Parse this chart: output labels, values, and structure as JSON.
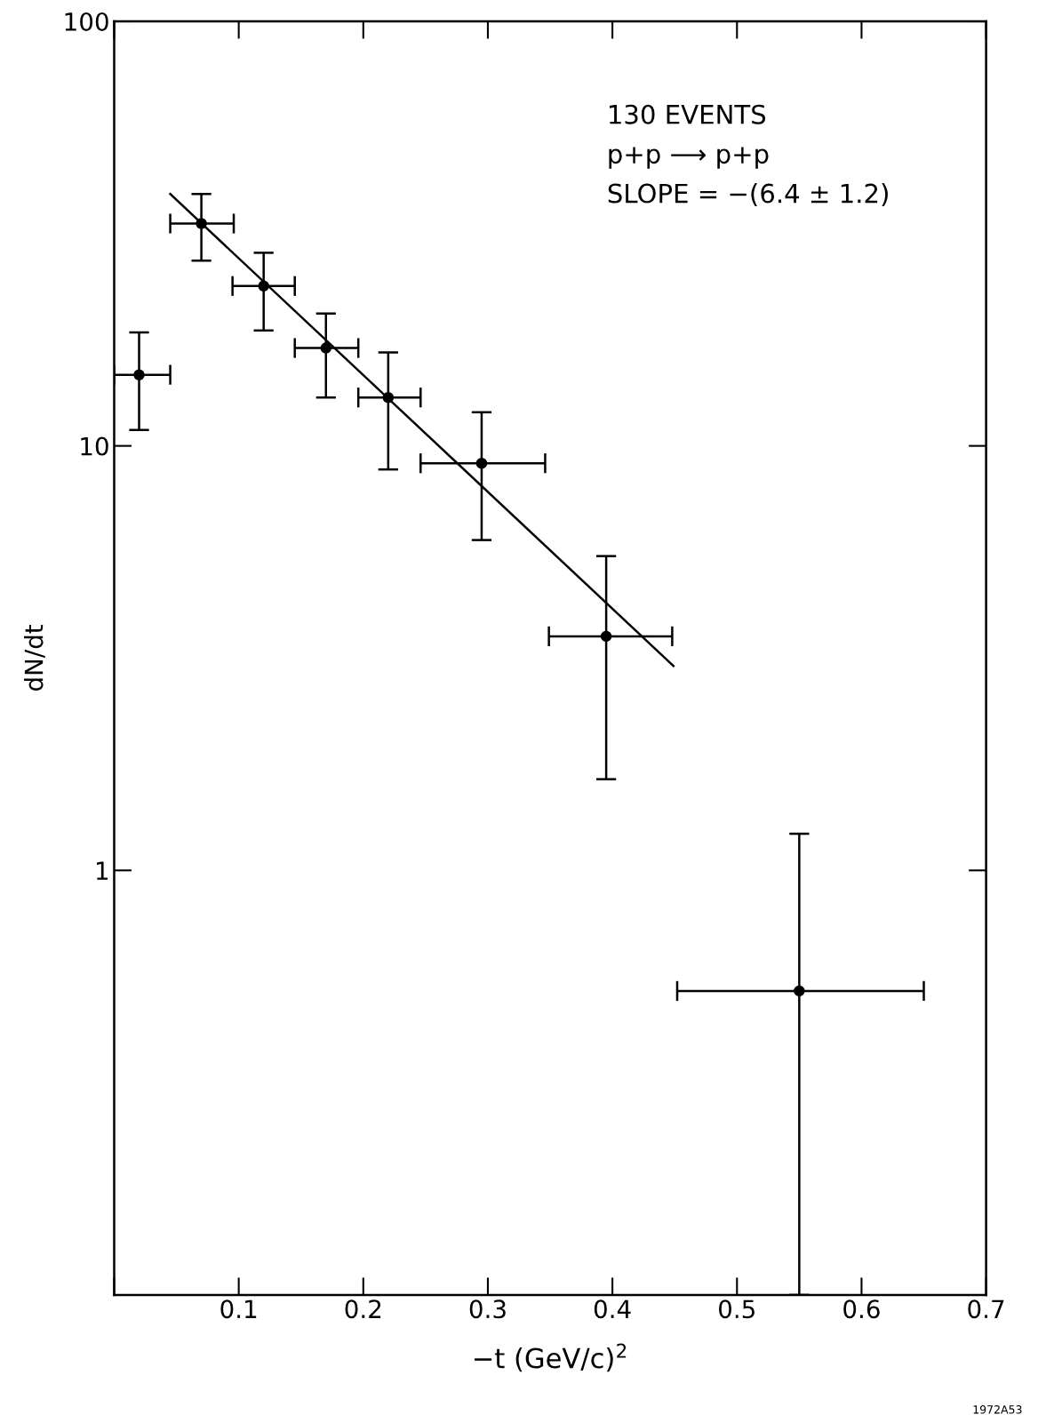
{
  "chart_data": {
    "type": "scatter",
    "xlabel": "−t (GeV/c)$^{2}$",
    "ylabel": "dN/dt",
    "log": "y",
    "xlim": [
      0,
      0.7
    ],
    "xticks": [
      {
        "value": 0,
        "label": null
      },
      0.1,
      0.2,
      0.3,
      0.4,
      0.5,
      0.6,
      0.7
    ],
    "ylim": [
      0.1,
      100
    ],
    "yticks": [
      1,
      10,
      100
    ],
    "grid": false,
    "series": [
      {
        "color": "#000000",
        "marker": "circle",
        "x": [
          0.02,
          0.07,
          0.12,
          0.17,
          0.22,
          0.295,
          0.395,
          0.55
        ],
        "values": [
          14.7,
          33.4,
          23.8,
          17.0,
          13.0,
          9.1,
          3.56,
          0.52
        ],
        "errors": [
          [
            10.9,
            18.5
          ],
          [
            27.3,
            39.2
          ],
          [
            18.7,
            28.5
          ],
          [
            13.0,
            20.5
          ],
          [
            8.8,
            16.6
          ],
          [
            6.0,
            12.0
          ],
          [
            1.64,
            5.5
          ],
          [
            0.1,
            1.22
          ]
        ],
        "xerrors": [
          [
            0,
            0.045
          ],
          [
            0.045,
            0.096
          ],
          [
            0.095,
            0.145
          ],
          [
            0.145,
            0.196
          ],
          [
            0.196,
            0.246
          ],
          [
            0.246,
            0.346
          ],
          [
            0.349,
            0.448
          ],
          [
            0.452,
            0.65
          ]
        ]
      },
      {
        "type": "line",
        "color": "#000000",
        "line_style": "solid",
        "x": [
          0.045,
          0.449
        ],
        "values": [
          39.2,
          3.03
        ]
      }
    ],
    "annotations": [
      "130 EVENTS",
      "p+p ⟶ p+p",
      "SLOPE = −(6.4 ± 1.2)",
      "1972A53"
    ]
  }
}
